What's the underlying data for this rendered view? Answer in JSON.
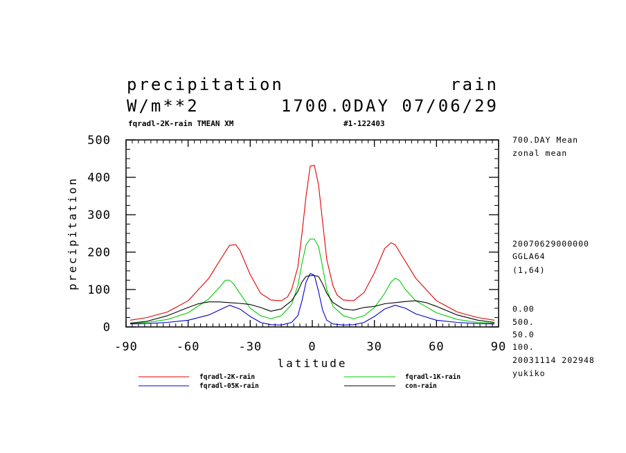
{
  "header": {
    "variable": "precipitation",
    "name": "rain",
    "units": "W/m**2",
    "time": "1700.0DAY 07/06/29",
    "experiment": "fqradl-2K-rain TMEAN XM",
    "run_id": "#1-122403"
  },
  "side_info": [
    "700.DAY Mean",
    "zonal mean",
    "20070629000000",
    "GGLA64",
    "(1,64)",
    "0.00",
    "500.",
    "50.0",
    "100.",
    "20031114 202948",
    "yukiko"
  ],
  "chart_data": {
    "type": "line",
    "xlabel": "latitude",
    "ylabel": "precipitation",
    "xlim": [
      -90,
      90
    ],
    "ylim": [
      0,
      500
    ],
    "xticks": [
      -90,
      -60,
      -30,
      0,
      30,
      60,
      90
    ],
    "yticks": [
      0,
      100,
      200,
      300,
      400,
      500
    ],
    "series": [
      {
        "name": "fqradl-2K-rain",
        "color": "#e00000",
        "x": [
          -88,
          -80,
          -70,
          -60,
          -50,
          -45,
          -40,
          -37,
          -35,
          -30,
          -25,
          -20,
          -15,
          -12,
          -10,
          -7,
          -5,
          -3,
          -1,
          1,
          3,
          5,
          7,
          10,
          12,
          15,
          20,
          25,
          30,
          35,
          38,
          40,
          45,
          50,
          60,
          70,
          80,
          88
        ],
        "y": [
          18,
          25,
          40,
          70,
          130,
          175,
          218,
          220,
          205,
          140,
          90,
          72,
          70,
          80,
          100,
          160,
          250,
          350,
          430,
          432,
          380,
          280,
          180,
          110,
          85,
          72,
          70,
          92,
          145,
          210,
          225,
          220,
          175,
          130,
          70,
          40,
          25,
          18
        ]
      },
      {
        "name": "fqradl-1K-rain",
        "color": "#00cc00",
        "x": [
          -88,
          -80,
          -70,
          -60,
          -50,
          -45,
          -42,
          -40,
          -38,
          -35,
          -30,
          -25,
          -20,
          -15,
          -10,
          -7,
          -5,
          -3,
          -1,
          1,
          3,
          5,
          7,
          10,
          15,
          20,
          25,
          30,
          35,
          38,
          40,
          42,
          45,
          50,
          60,
          70,
          80,
          88
        ],
        "y": [
          10,
          12,
          20,
          38,
          75,
          105,
          125,
          125,
          115,
          90,
          50,
          30,
          22,
          30,
          60,
          110,
          170,
          220,
          235,
          235,
          215,
          160,
          100,
          55,
          30,
          22,
          30,
          52,
          90,
          120,
          130,
          125,
          100,
          70,
          38,
          20,
          12,
          10
        ]
      },
      {
        "name": "fqradl-05K-rain",
        "color": "#0000cc",
        "x": [
          -88,
          -80,
          -70,
          -60,
          -50,
          -45,
          -40,
          -35,
          -30,
          -25,
          -20,
          -15,
          -10,
          -7,
          -5,
          -3,
          -1,
          1,
          3,
          5,
          7,
          10,
          15,
          20,
          25,
          30,
          35,
          40,
          45,
          50,
          60,
          70,
          80,
          88
        ],
        "y": [
          8,
          9,
          12,
          18,
          32,
          45,
          58,
          48,
          28,
          12,
          6,
          5,
          12,
          30,
          70,
          120,
          143,
          138,
          95,
          45,
          18,
          8,
          5,
          6,
          12,
          28,
          48,
          58,
          50,
          35,
          18,
          12,
          9,
          8
        ]
      },
      {
        "name": "con-rain",
        "color": "#000000",
        "x": [
          -88,
          -80,
          -70,
          -60,
          -55,
          -50,
          -45,
          -40,
          -35,
          -30,
          -25,
          -20,
          -15,
          -10,
          -7,
          -5,
          -3,
          0,
          3,
          5,
          7,
          10,
          15,
          20,
          25,
          30,
          35,
          40,
          45,
          50,
          55,
          60,
          70,
          80,
          88
        ],
        "y": [
          10,
          15,
          30,
          52,
          62,
          67,
          67,
          65,
          63,
          60,
          52,
          42,
          48,
          70,
          95,
          120,
          135,
          138,
          135,
          115,
          90,
          65,
          48,
          45,
          52,
          55,
          62,
          65,
          68,
          70,
          65,
          55,
          32,
          18,
          12
        ]
      }
    ]
  }
}
